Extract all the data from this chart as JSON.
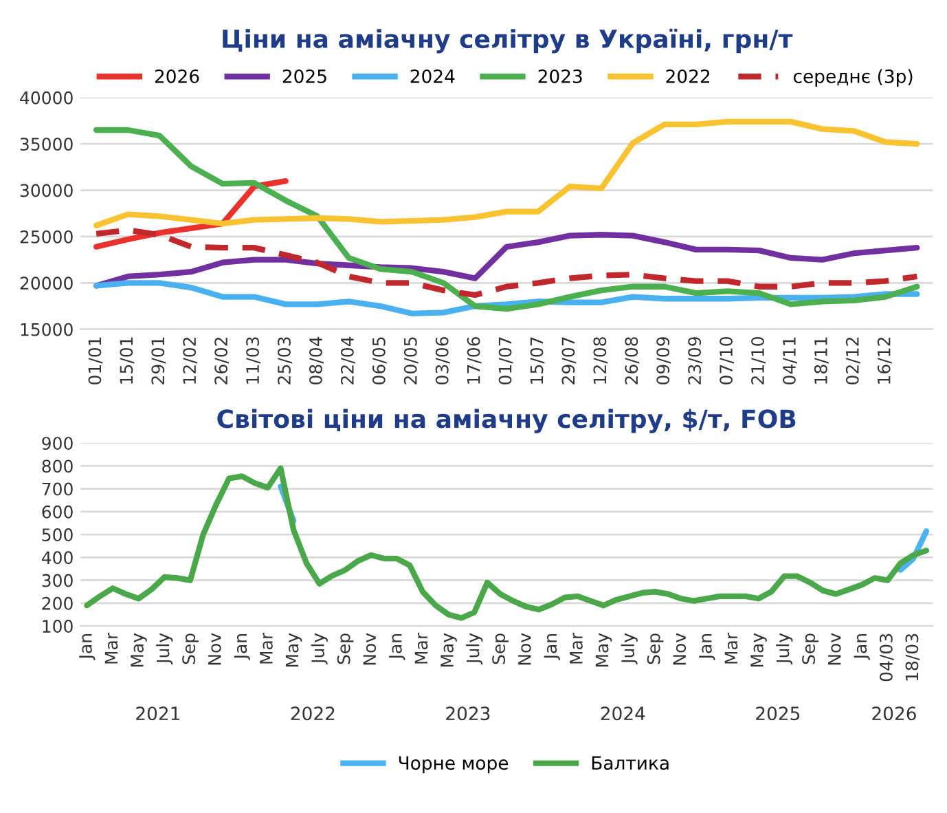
{
  "chart_data": [
    {
      "type": "line",
      "title": "Ціни на аміачну селітру в Україні, грн/т",
      "categories": [
        "01/01",
        "15/01",
        "29/01",
        "12/02",
        "26/02",
        "11/03",
        "25/03",
        "08/04",
        "22/04",
        "06/05",
        "20/05",
        "03/06",
        "17/06",
        "01/07",
        "15/07",
        "29/07",
        "12/08",
        "26/08",
        "09/09",
        "23/09",
        "07/10",
        "21/10",
        "04/11",
        "18/11",
        "02/12",
        "16/12",
        null
      ],
      "series": [
        {
          "name": "2026",
          "color": "#e8322b",
          "values": [
            23900,
            24700,
            25400,
            25900,
            26400,
            30400,
            31000,
            null,
            null,
            null,
            null,
            null,
            null,
            null,
            null,
            null,
            null,
            null,
            null,
            null,
            null,
            null,
            null,
            null,
            null,
            null,
            null
          ]
        },
        {
          "name": "2025",
          "color": "#7030a0",
          "values": [
            19700,
            20700,
            20900,
            21200,
            22200,
            22500,
            22500,
            22100,
            21900,
            21700,
            21600,
            21200,
            20500,
            23900,
            24400,
            25100,
            25200,
            25100,
            24400,
            23600,
            23600,
            23500,
            22700,
            22500,
            23200,
            23500,
            23800
          ]
        },
        {
          "name": "2024",
          "color": "#4bb0ef",
          "values": [
            19700,
            20000,
            20000,
            19500,
            18500,
            18500,
            17700,
            17700,
            18000,
            17500,
            16700,
            16800,
            17500,
            17700,
            18000,
            17900,
            17900,
            18500,
            18300,
            18300,
            18300,
            18400,
            18400,
            18400,
            18500,
            18800,
            18800
          ]
        },
        {
          "name": "2023",
          "color": "#4caf50",
          "values": [
            36500,
            36500,
            35900,
            32600,
            30700,
            30800,
            28900,
            27200,
            22700,
            21500,
            21200,
            20000,
            17500,
            17200,
            17700,
            18500,
            19200,
            19600,
            19600,
            18900,
            19100,
            18900,
            17700,
            18000,
            18100,
            18500,
            19600
          ]
        },
        {
          "name": "2022",
          "color": "#f9c231",
          "values": [
            26200,
            27400,
            27200,
            26800,
            26400,
            26800,
            26900,
            27000,
            26900,
            26600,
            26700,
            26800,
            27100,
            27700,
            27700,
            30400,
            30200,
            35100,
            37100,
            37100,
            37400,
            37400,
            37400,
            36600,
            36400,
            35200,
            35000
          ]
        },
        {
          "name": "середнє (3р)",
          "color": "#c0282d",
          "line_style": "dashed",
          "values": [
            25300,
            25700,
            25200,
            23900,
            23800,
            23800,
            23000,
            22200,
            20700,
            20000,
            20000,
            19200,
            18700,
            19600,
            20000,
            20500,
            20800,
            20900,
            20500,
            20200,
            20200,
            19600,
            19600,
            20000,
            20000,
            20200,
            20700
          ]
        }
      ],
      "ylim": [
        15000,
        40000
      ],
      "yticks": [
        15000,
        20000,
        25000,
        30000,
        35000,
        40000
      ],
      "grid": "y",
      "legend": "top",
      "line_style": "solid"
    },
    {
      "type": "line",
      "title": "Світові ціни на аміачну селітру, $/т, FOB",
      "categories": [
        "Jan",
        null,
        "Mar",
        null,
        "May",
        null,
        "July",
        null,
        "Sep",
        null,
        "Nov",
        null,
        "Jan",
        null,
        "Mar",
        null,
        "May",
        null,
        "July",
        null,
        "Sep",
        null,
        "Nov",
        null,
        "Jan",
        null,
        "Mar",
        null,
        "May",
        null,
        "July",
        null,
        "Sep",
        null,
        "Nov",
        null,
        "Jan",
        null,
        "Mar",
        null,
        "May",
        null,
        "July",
        null,
        "Sep",
        null,
        "Nov",
        null,
        "Jan",
        null,
        "Mar",
        null,
        "May",
        null,
        "July",
        null,
        "Sep",
        null,
        "Nov",
        null,
        "Jan",
        null,
        "04/03",
        null,
        "18/03",
        null
      ],
      "series": [
        {
          "name": "Чорне море",
          "color": "#4db3ee",
          "values": [
            null,
            null,
            null,
            null,
            null,
            null,
            null,
            null,
            null,
            null,
            null,
            null,
            null,
            null,
            null,
            710,
            560,
            null,
            null,
            null,
            null,
            null,
            null,
            null,
            null,
            null,
            null,
            null,
            null,
            null,
            null,
            null,
            null,
            null,
            null,
            null,
            null,
            null,
            null,
            null,
            null,
            null,
            null,
            null,
            null,
            null,
            null,
            null,
            null,
            null,
            null,
            null,
            null,
            null,
            null,
            null,
            null,
            null,
            null,
            null,
            null,
            null,
            null,
            345,
            395,
            515
          ]
        },
        {
          "name": "Балтика",
          "color": "#4aa84a",
          "values": [
            190,
            230,
            265,
            240,
            220,
            260,
            314,
            310,
            300,
            500,
            630,
            745,
            755,
            725,
            705,
            790,
            520,
            375,
            285,
            320,
            345,
            385,
            410,
            395,
            395,
            365,
            250,
            190,
            150,
            135,
            160,
            290,
            240,
            210,
            185,
            172,
            195,
            225,
            230,
            210,
            190,
            215,
            230,
            245,
            250,
            240,
            220,
            210,
            220,
            230,
            230,
            230,
            220,
            250,
            318,
            318,
            290,
            255,
            240,
            260,
            280,
            310,
            300,
            375,
            410,
            430
          ]
        }
      ],
      "ylim": [
        100,
        900
      ],
      "yticks": [
        100,
        200,
        300,
        400,
        500,
        600,
        700,
        800,
        900
      ],
      "grid": "y",
      "legend": "bottom",
      "line_style": "solid",
      "annotations": [
        "2021",
        "2022",
        "2023",
        "2024",
        "2025",
        "2026"
      ]
    }
  ]
}
